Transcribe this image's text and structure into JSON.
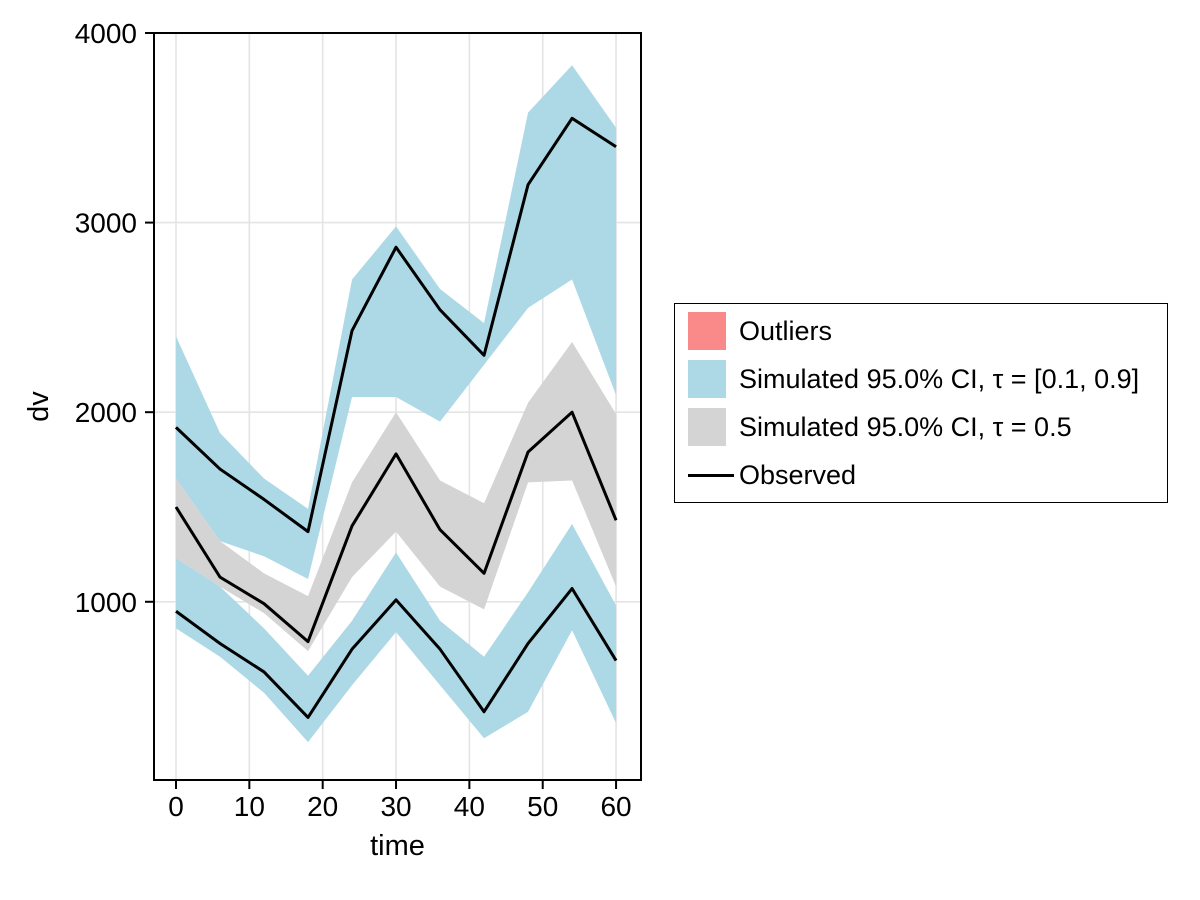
{
  "axis": {
    "xlabel": "time",
    "ylabel": "dv",
    "xticks": [
      0,
      10,
      20,
      30,
      40,
      50,
      60
    ],
    "yticks": [
      1000,
      2000,
      3000,
      4000
    ],
    "xlim": [
      -3.0,
      63.4
    ],
    "ylim": [
      60,
      4000
    ]
  },
  "chart_data": {
    "type": "area",
    "title": "",
    "xlabel": "time",
    "ylabel": "dv",
    "x": [
      0,
      6,
      12,
      18,
      24,
      30,
      36,
      42,
      48,
      54,
      60
    ],
    "bands": [
      {
        "name": "simulated-ci-upper-quantile",
        "legend": "Simulated 95.0% CI, τ = [0.1, 0.9]",
        "color": "#add8e6",
        "upper": [
          2400,
          1890,
          1650,
          1490,
          2700,
          2980,
          2650,
          2470,
          3580,
          3830,
          3500
        ],
        "lower": [
          1650,
          1320,
          1240,
          1120,
          2080,
          2080,
          1950,
          2250,
          2550,
          2700,
          2090
        ]
      },
      {
        "name": "simulated-ci-median",
        "legend": "Simulated 95.0% CI, τ = 0.5",
        "color": "#d4d4d4",
        "upper": [
          1650,
          1320,
          1150,
          1030,
          1630,
          2000,
          1640,
          1520,
          2050,
          2370,
          1990
        ],
        "lower": [
          1230,
          1080,
          940,
          740,
          1130,
          1370,
          1080,
          960,
          1630,
          1640,
          1080
        ]
      },
      {
        "name": "simulated-ci-lower-quantile",
        "legend": "Simulated 95.0% CI, τ = [0.1, 0.9]",
        "color": "#add8e6",
        "upper": [
          1230,
          1080,
          860,
          610,
          900,
          1260,
          900,
          710,
          1050,
          1410,
          980
        ],
        "lower": [
          860,
          710,
          520,
          260,
          560,
          840,
          560,
          280,
          420,
          850,
          360
        ]
      }
    ],
    "lines": [
      {
        "name": "observed-upper-quantile",
        "legend": "Observed",
        "color": "#000000",
        "values": [
          1920,
          1700,
          1540,
          1370,
          2430,
          2870,
          2540,
          2300,
          3200,
          3550,
          3400
        ]
      },
      {
        "name": "observed-median",
        "legend": "Observed",
        "color": "#000000",
        "values": [
          1500,
          1130,
          990,
          790,
          1400,
          1780,
          1380,
          1150,
          1790,
          2000,
          1430
        ]
      },
      {
        "name": "observed-lower-quantile",
        "legend": "Observed",
        "color": "#000000",
        "values": [
          950,
          780,
          630,
          390,
          750,
          1010,
          750,
          420,
          780,
          1070,
          690
        ]
      }
    ]
  },
  "legend": {
    "items": [
      {
        "label": "Outliers",
        "type": "patch",
        "color": "#fa8a8a"
      },
      {
        "label": "Simulated 95.0% CI, τ = [0.1, 0.9]",
        "type": "patch",
        "color": "#add8e6"
      },
      {
        "label": "Simulated 95.0% CI, τ = 0.5",
        "type": "patch",
        "color": "#d4d4d4"
      },
      {
        "label": "Observed",
        "type": "line",
        "color": "#000000"
      }
    ]
  },
  "style": {
    "grid_color": "#e4e4e4",
    "frame_color": "#000000",
    "tick_color": "#000000",
    "background": "#ffffff"
  }
}
